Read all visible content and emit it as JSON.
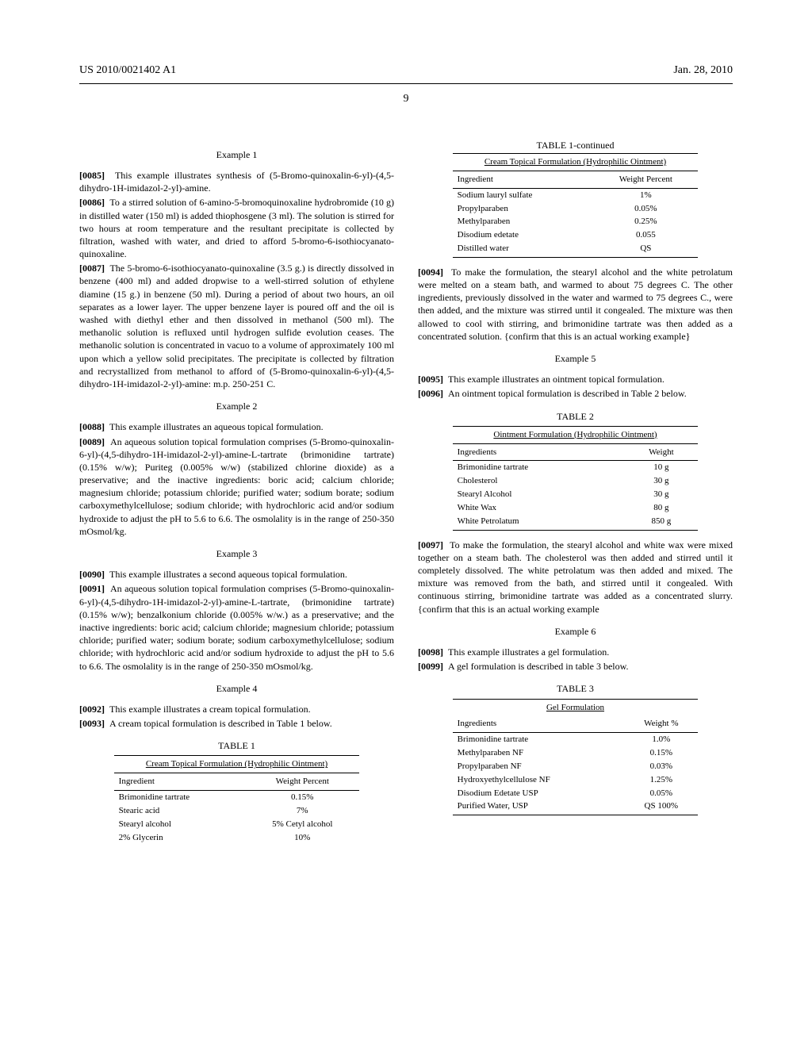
{
  "header": {
    "pubnum": "US 2010/0021402 A1",
    "date": "Jan. 28, 2010"
  },
  "page_number": "9",
  "left": {
    "ex1_head": "Example 1",
    "p0085": "This example illustrates synthesis of (5-Bromo-quinoxalin-6-yl)-(4,5-dihydro-1H-imidazol-2-yl)-amine.",
    "p0086": "To a stirred solution of 6-amino-5-bromoquinoxaline hydrobromide (10 g) in distilled water (150 ml) is added thiophosgene (3 ml). The solution is stirred for two hours at room temperature and the resultant precipitate is collected by filtration, washed with water, and dried to afford 5-bromo-6-isothiocyanato-quinoxaline.",
    "p0087": "The 5-bromo-6-isothiocyanato-quinoxaline (3.5 g.) is directly dissolved in benzene (400 ml) and added dropwise to a well-stirred solution of ethylene diamine (15 g.) in benzene (50 ml). During a period of about two hours, an oil separates as a lower layer. The upper benzene layer is poured off and the oil is washed with diethyl ether and then dissolved in methanol (500 ml). The methanolic solution is refluxed until hydrogen sulfide evolution ceases. The methanolic solution is concentrated in vacuo to a volume of approximately 100 ml upon which a yellow solid precipitates. The precipitate is collected by filtration and recrystallized from methanol to afford of (5-Bromo-quinoxalin-6-yl)-(4,5-dihydro-1H-imidazol-2-yl)-amine: m.p. 250-251 C.",
    "ex2_head": "Example 2",
    "p0088": "This example illustrates an aqueous topical formulation.",
    "p0089": "An aqueous solution topical formulation comprises (5-Bromo-quinoxalin-6-yl)-(4,5-dihydro-1H-imidazol-2-yl)-amine-L-tartrate (brimonidine tartrate) (0.15% w/w); Puriteg (0.005% w/w) (stabilized chlorine dioxide) as a preservative; and the inactive ingredients: boric acid; calcium chloride; magnesium chloride; potassium chloride; purified water; sodium borate; sodium carboxymethylcellulose; sodium chloride; with hydrochloric acid and/or sodium hydroxide to adjust the pH to 5.6 to 6.6. The osmolality is in the range of 250-350 mOsmol/kg.",
    "ex3_head": "Example 3",
    "p0090": "This example illustrates a second aqueous topical formulation.",
    "p0091": "An aqueous solution topical formulation comprises (5-Bromo-quinoxalin-6-yl)-(4,5-dihydro-1H-imidazol-2-yl)-amine-L-tartrate, (brimonidine tartrate) (0.15% w/w); benzalkonium chloride (0.005% w/w.) as a preservative; and the inactive ingredients: boric acid; calcium chloride; magnesium chloride; potassium chloride; purified water; sodium borate; sodium carboxymethylcellulose; sodium chloride; with hydrochloric acid and/or sodium hydroxide to adjust the pH to 5.6 to 6.6. The osmolality is in the range of 250-350 mOsmol/kg.",
    "ex4_head": "Example 4",
    "p0092": "This example illustrates a cream topical formulation.",
    "p0093": "A cream topical formulation is described in Table 1 below.",
    "table1_caption": "TABLE 1",
    "table1_title": "Cream Topical Formulation (Hydrophilic Ointment)",
    "table1_h1": "Ingredient",
    "table1_h2": "Weight Percent",
    "t1r": [
      {
        "a": "Brimonidine tartrate",
        "b": "0.15%"
      },
      {
        "a": "Stearic acid",
        "b": "7%"
      },
      {
        "a": "Stearyl alcohol",
        "b": "5% Cetyl alcohol"
      },
      {
        "a": "2% Glycerin",
        "b": "10%"
      }
    ]
  },
  "right": {
    "table1c_caption": "TABLE 1-continued",
    "table1c_title": "Cream Topical Formulation (Hydrophilic Ointment)",
    "table1c_h1": "Ingredient",
    "table1c_h2": "Weight Percent",
    "t1cr": [
      {
        "a": "Sodium lauryl sulfate",
        "b": "1%"
      },
      {
        "a": "Propylparaben",
        "b": "0.05%"
      },
      {
        "a": "Methylparaben",
        "b": "0.25%"
      },
      {
        "a": "Disodium edetate",
        "b": "0.055"
      },
      {
        "a": "Distilled water",
        "b": "QS"
      }
    ],
    "p0094": "To make the formulation, the stearyl alcohol and the white petrolatum were melted on a steam bath, and warmed to about 75 degrees C. The other ingredients, previously dissolved in the water and warmed to 75 degrees C., were then added, and the mixture was stirred until it congealed. The mixture was then allowed to cool with stirring, and brimonidine tartrate was then added as a concentrated solution. {confirm that this is an actual working example}",
    "ex5_head": "Example 5",
    "p0095": "This example illustrates an ointment topical formulation.",
    "p0096": "An ointment topical formulation is described in Table 2 below.",
    "table2_caption": "TABLE 2",
    "table2_title": "Ointment Formulation (Hydrophilic Ointment)",
    "table2_h1": "Ingredients",
    "table2_h2": "Weight",
    "t2r": [
      {
        "a": "Brimonidine tartrate",
        "b": "10 g"
      },
      {
        "a": "Cholesterol",
        "b": "30 g"
      },
      {
        "a": "Stearyl Alcohol",
        "b": "30 g"
      },
      {
        "a": "White Wax",
        "b": "80 g"
      },
      {
        "a": "White Petrolatum",
        "b": "850 g"
      }
    ],
    "p0097": "To make the formulation, the stearyl alcohol and white wax were mixed together on a steam bath. The cholesterol was then added and stirred until it completely dissolved. The white petrolatum was then added and mixed. The mixture was removed from the bath, and stirred until it congealed. With continuous stirring, brimonidine tartrate was added as a concentrated slurry. {confirm that this is an actual working example",
    "ex6_head": "Example 6",
    "p0098": "This example illustrates a gel formulation.",
    "p0099": "A gel formulation is described in table 3 below.",
    "table3_caption": "TABLE 3",
    "table3_title": "Gel Formulation",
    "table3_h1": "Ingredients",
    "table3_h2": "Weight %",
    "t3r": [
      {
        "a": "Brimonidine tartrate",
        "b": "1.0%"
      },
      {
        "a": "Methylparaben NF",
        "b": "0.15%"
      },
      {
        "a": "Propylparaben NF",
        "b": "0.03%"
      },
      {
        "a": "Hydroxyethylcellulose NF",
        "b": "1.25%"
      },
      {
        "a": "Disodium Edetate USP",
        "b": "0.05%"
      },
      {
        "a": "Purified Water, USP",
        "b": "QS 100%"
      }
    ]
  }
}
